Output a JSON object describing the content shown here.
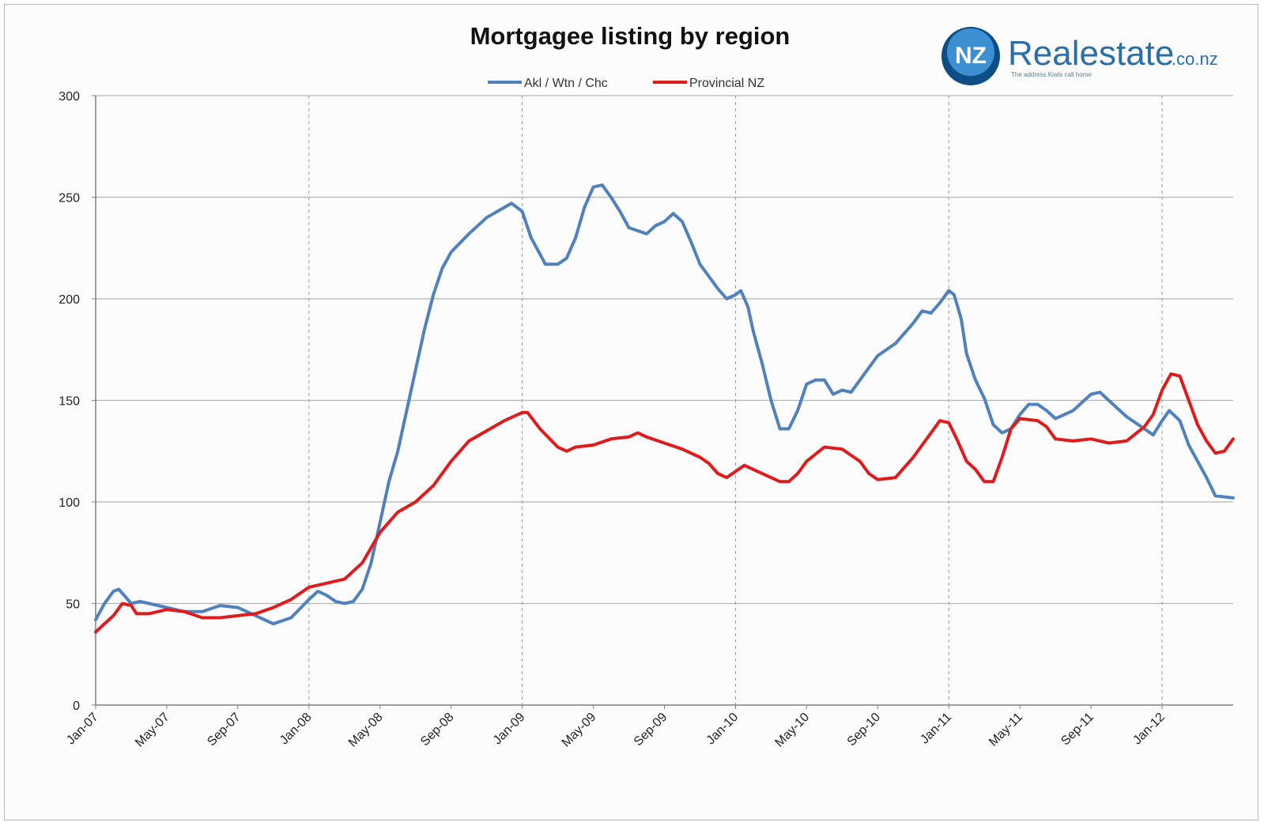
{
  "brand": {
    "name": "Realestate",
    "suffix": ".co.nz",
    "tagline": "The address Kiwis call home",
    "badge_text": "NZ",
    "colors": {
      "primary": "#2a6fa8",
      "badge_dark": "#0d4f85",
      "badge_light": "#3c8fd0"
    }
  },
  "chart_data": {
    "type": "line",
    "title": "Mortgagee listing by region",
    "xlabel": "",
    "ylabel": "",
    "ylim": [
      0,
      300
    ],
    "yticks": [
      0,
      50,
      100,
      150,
      200,
      250,
      300
    ],
    "grid": true,
    "legend_position": "top",
    "x_tick_labels": [
      "Jan-07",
      "May-07",
      "Sep-07",
      "Jan-08",
      "May-08",
      "Sep-08",
      "Jan-09",
      "May-09",
      "Sep-09",
      "Jan-10",
      "May-10",
      "Sep-10",
      "Jan-11",
      "May-11",
      "Sep-11",
      "Jan-12"
    ],
    "x_tick_positions": [
      0,
      4,
      8,
      12,
      16,
      20,
      24,
      28,
      32,
      36,
      40,
      44,
      48,
      52,
      56,
      60
    ],
    "vertical_gridline_positions": [
      12,
      24,
      36,
      48,
      60
    ],
    "x_max": 64,
    "series": [
      {
        "name": "Akl / Wtn / Chc",
        "color": "#4f81bd",
        "points": [
          [
            0,
            42
          ],
          [
            0.5,
            50
          ],
          [
            1,
            56
          ],
          [
            1.3,
            57
          ],
          [
            1.6,
            54
          ],
          [
            2,
            50
          ],
          [
            2.5,
            51
          ],
          [
            3,
            50
          ],
          [
            4,
            48
          ],
          [
            5,
            46
          ],
          [
            6,
            46
          ],
          [
            7,
            49
          ],
          [
            8,
            48
          ],
          [
            9,
            44
          ],
          [
            10,
            40
          ],
          [
            11,
            43
          ],
          [
            12,
            52
          ],
          [
            12.5,
            56
          ],
          [
            13,
            54
          ],
          [
            13.5,
            51
          ],
          [
            14,
            50
          ],
          [
            14.5,
            51
          ],
          [
            15,
            57
          ],
          [
            15.5,
            70
          ],
          [
            16,
            90
          ],
          [
            16.5,
            110
          ],
          [
            17,
            125
          ],
          [
            17.5,
            145
          ],
          [
            18,
            165
          ],
          [
            18.5,
            185
          ],
          [
            19,
            202
          ],
          [
            19.5,
            215
          ],
          [
            20,
            223
          ],
          [
            21,
            232
          ],
          [
            22,
            240
          ],
          [
            23,
            245
          ],
          [
            23.4,
            247
          ],
          [
            24,
            243
          ],
          [
            24.5,
            230
          ],
          [
            25,
            222
          ],
          [
            25.3,
            217
          ],
          [
            26,
            217
          ],
          [
            26.5,
            220
          ],
          [
            27,
            230
          ],
          [
            27.5,
            245
          ],
          [
            28,
            255
          ],
          [
            28.5,
            256
          ],
          [
            29,
            250
          ],
          [
            29.5,
            243
          ],
          [
            30,
            235
          ],
          [
            31,
            232
          ],
          [
            31.5,
            236
          ],
          [
            32,
            238
          ],
          [
            32.5,
            242
          ],
          [
            33,
            238
          ],
          [
            33.5,
            228
          ],
          [
            34,
            217
          ],
          [
            35,
            205
          ],
          [
            35.5,
            200
          ],
          [
            36,
            202
          ],
          [
            36.3,
            204
          ],
          [
            36.7,
            196
          ],
          [
            37,
            184
          ],
          [
            37.5,
            168
          ],
          [
            38,
            150
          ],
          [
            38.5,
            136
          ],
          [
            39,
            136
          ],
          [
            39.5,
            145
          ],
          [
            40,
            158
          ],
          [
            40.5,
            160
          ],
          [
            41,
            160
          ],
          [
            41.5,
            153
          ],
          [
            42,
            155
          ],
          [
            42.5,
            154
          ],
          [
            43,
            160
          ],
          [
            44,
            172
          ],
          [
            45,
            178
          ],
          [
            46,
            188
          ],
          [
            46.5,
            194
          ],
          [
            47,
            193
          ],
          [
            47.5,
            198
          ],
          [
            48,
            204
          ],
          [
            48.3,
            202
          ],
          [
            48.7,
            190
          ],
          [
            49,
            173
          ],
          [
            49.5,
            160
          ],
          [
            50,
            151
          ],
          [
            50.5,
            138
          ],
          [
            51,
            134
          ],
          [
            51.5,
            136
          ],
          [
            52,
            143
          ],
          [
            52.5,
            148
          ],
          [
            53,
            148
          ],
          [
            53.5,
            145
          ],
          [
            54,
            141
          ],
          [
            55,
            145
          ],
          [
            56,
            153
          ],
          [
            56.5,
            154
          ],
          [
            57,
            150
          ],
          [
            58,
            142
          ],
          [
            59,
            136
          ],
          [
            59.5,
            133
          ],
          [
            60,
            140
          ],
          [
            60.4,
            145
          ],
          [
            61,
            140
          ],
          [
            61.5,
            128
          ],
          [
            62,
            120
          ],
          [
            62.5,
            112
          ],
          [
            63,
            103
          ],
          [
            64,
            102
          ]
        ]
      },
      {
        "name": "Provincial NZ",
        "color": "#e01b1b",
        "points": [
          [
            0,
            36
          ],
          [
            0.5,
            40
          ],
          [
            1,
            44
          ],
          [
            1.5,
            50
          ],
          [
            2,
            49
          ],
          [
            2.3,
            45
          ],
          [
            3,
            45
          ],
          [
            4,
            47
          ],
          [
            5,
            46
          ],
          [
            6,
            43
          ],
          [
            7,
            43
          ],
          [
            8,
            44
          ],
          [
            9,
            45
          ],
          [
            10,
            48
          ],
          [
            11,
            52
          ],
          [
            12,
            58
          ],
          [
            13,
            60
          ],
          [
            14,
            62
          ],
          [
            15,
            70
          ],
          [
            16,
            85
          ],
          [
            17,
            95
          ],
          [
            18,
            100
          ],
          [
            19,
            108
          ],
          [
            20,
            120
          ],
          [
            21,
            130
          ],
          [
            22,
            135
          ],
          [
            23,
            140
          ],
          [
            24,
            144
          ],
          [
            24.3,
            144
          ],
          [
            25,
            136
          ],
          [
            26,
            127
          ],
          [
            26.5,
            125
          ],
          [
            27,
            127
          ],
          [
            28,
            128
          ],
          [
            29,
            131
          ],
          [
            30,
            132
          ],
          [
            30.5,
            134
          ],
          [
            31,
            132
          ],
          [
            32,
            129
          ],
          [
            33,
            126
          ],
          [
            34,
            122
          ],
          [
            34.5,
            119
          ],
          [
            35,
            114
          ],
          [
            35.5,
            112
          ],
          [
            36,
            115
          ],
          [
            36.5,
            118
          ],
          [
            37,
            116
          ],
          [
            38,
            112
          ],
          [
            38.5,
            110
          ],
          [
            39,
            110
          ],
          [
            39.5,
            114
          ],
          [
            40,
            120
          ],
          [
            41,
            127
          ],
          [
            42,
            126
          ],
          [
            43,
            120
          ],
          [
            43.5,
            114
          ],
          [
            44,
            111
          ],
          [
            45,
            112
          ],
          [
            46,
            122
          ],
          [
            47,
            134
          ],
          [
            47.5,
            140
          ],
          [
            48,
            139
          ],
          [
            48.5,
            130
          ],
          [
            49,
            120
          ],
          [
            49.5,
            116
          ],
          [
            50,
            110
          ],
          [
            50.5,
            110
          ],
          [
            51,
            122
          ],
          [
            51.5,
            136
          ],
          [
            52,
            141
          ],
          [
            53,
            140
          ],
          [
            53.5,
            137
          ],
          [
            54,
            131
          ],
          [
            55,
            130
          ],
          [
            56,
            131
          ],
          [
            57,
            129
          ],
          [
            58,
            130
          ],
          [
            59,
            137
          ],
          [
            59.5,
            143
          ],
          [
            60,
            155
          ],
          [
            60.5,
            163
          ],
          [
            61,
            162
          ],
          [
            61.5,
            150
          ],
          [
            62,
            138
          ],
          [
            62.5,
            130
          ],
          [
            63,
            124
          ],
          [
            63.5,
            125
          ],
          [
            64,
            131
          ]
        ]
      }
    ]
  }
}
